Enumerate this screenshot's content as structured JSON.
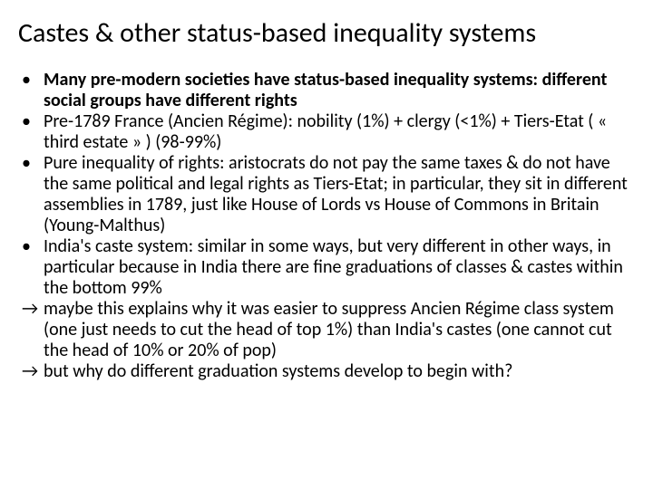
{
  "title": "Castes & other status-based inequality systems",
  "items": [
    {
      "marker": "•",
      "bold": true,
      "text": "Many pre-modern societies have status-based inequality systems: different social groups have different rights"
    },
    {
      "marker": "•",
      "bold": false,
      "text": "Pre-1789 France (Ancien Régime): nobility (1%) + clergy (<1%) + Tiers-Etat ( « third estate » ) (98-99%)"
    },
    {
      "marker": "•",
      "bold": false,
      "text": "Pure inequality of rights: aristocrats do not pay the same taxes & do not have the same political and legal rights as Tiers-Etat; in particular, they sit in different assemblies in 1789, just like House of Lords vs House of Commons in Britain   (Young-Malthus)"
    },
    {
      "marker": "•",
      "bold": false,
      "text": "India's caste system: similar in some ways, but very different in other ways, in particular because in India there are fine graduations of classes & castes within the bottom 99%"
    },
    {
      "marker": "→",
      "bold": false,
      "text": "maybe this explains why it was easier to suppress Ancien Régime class system (one just needs to cut the head of top 1%) than India's castes  (one cannot cut the head of 10% or 20% of pop)"
    },
    {
      "marker": "→",
      "bold": false,
      "text": "but why do different graduation systems develop to begin with?"
    }
  ]
}
